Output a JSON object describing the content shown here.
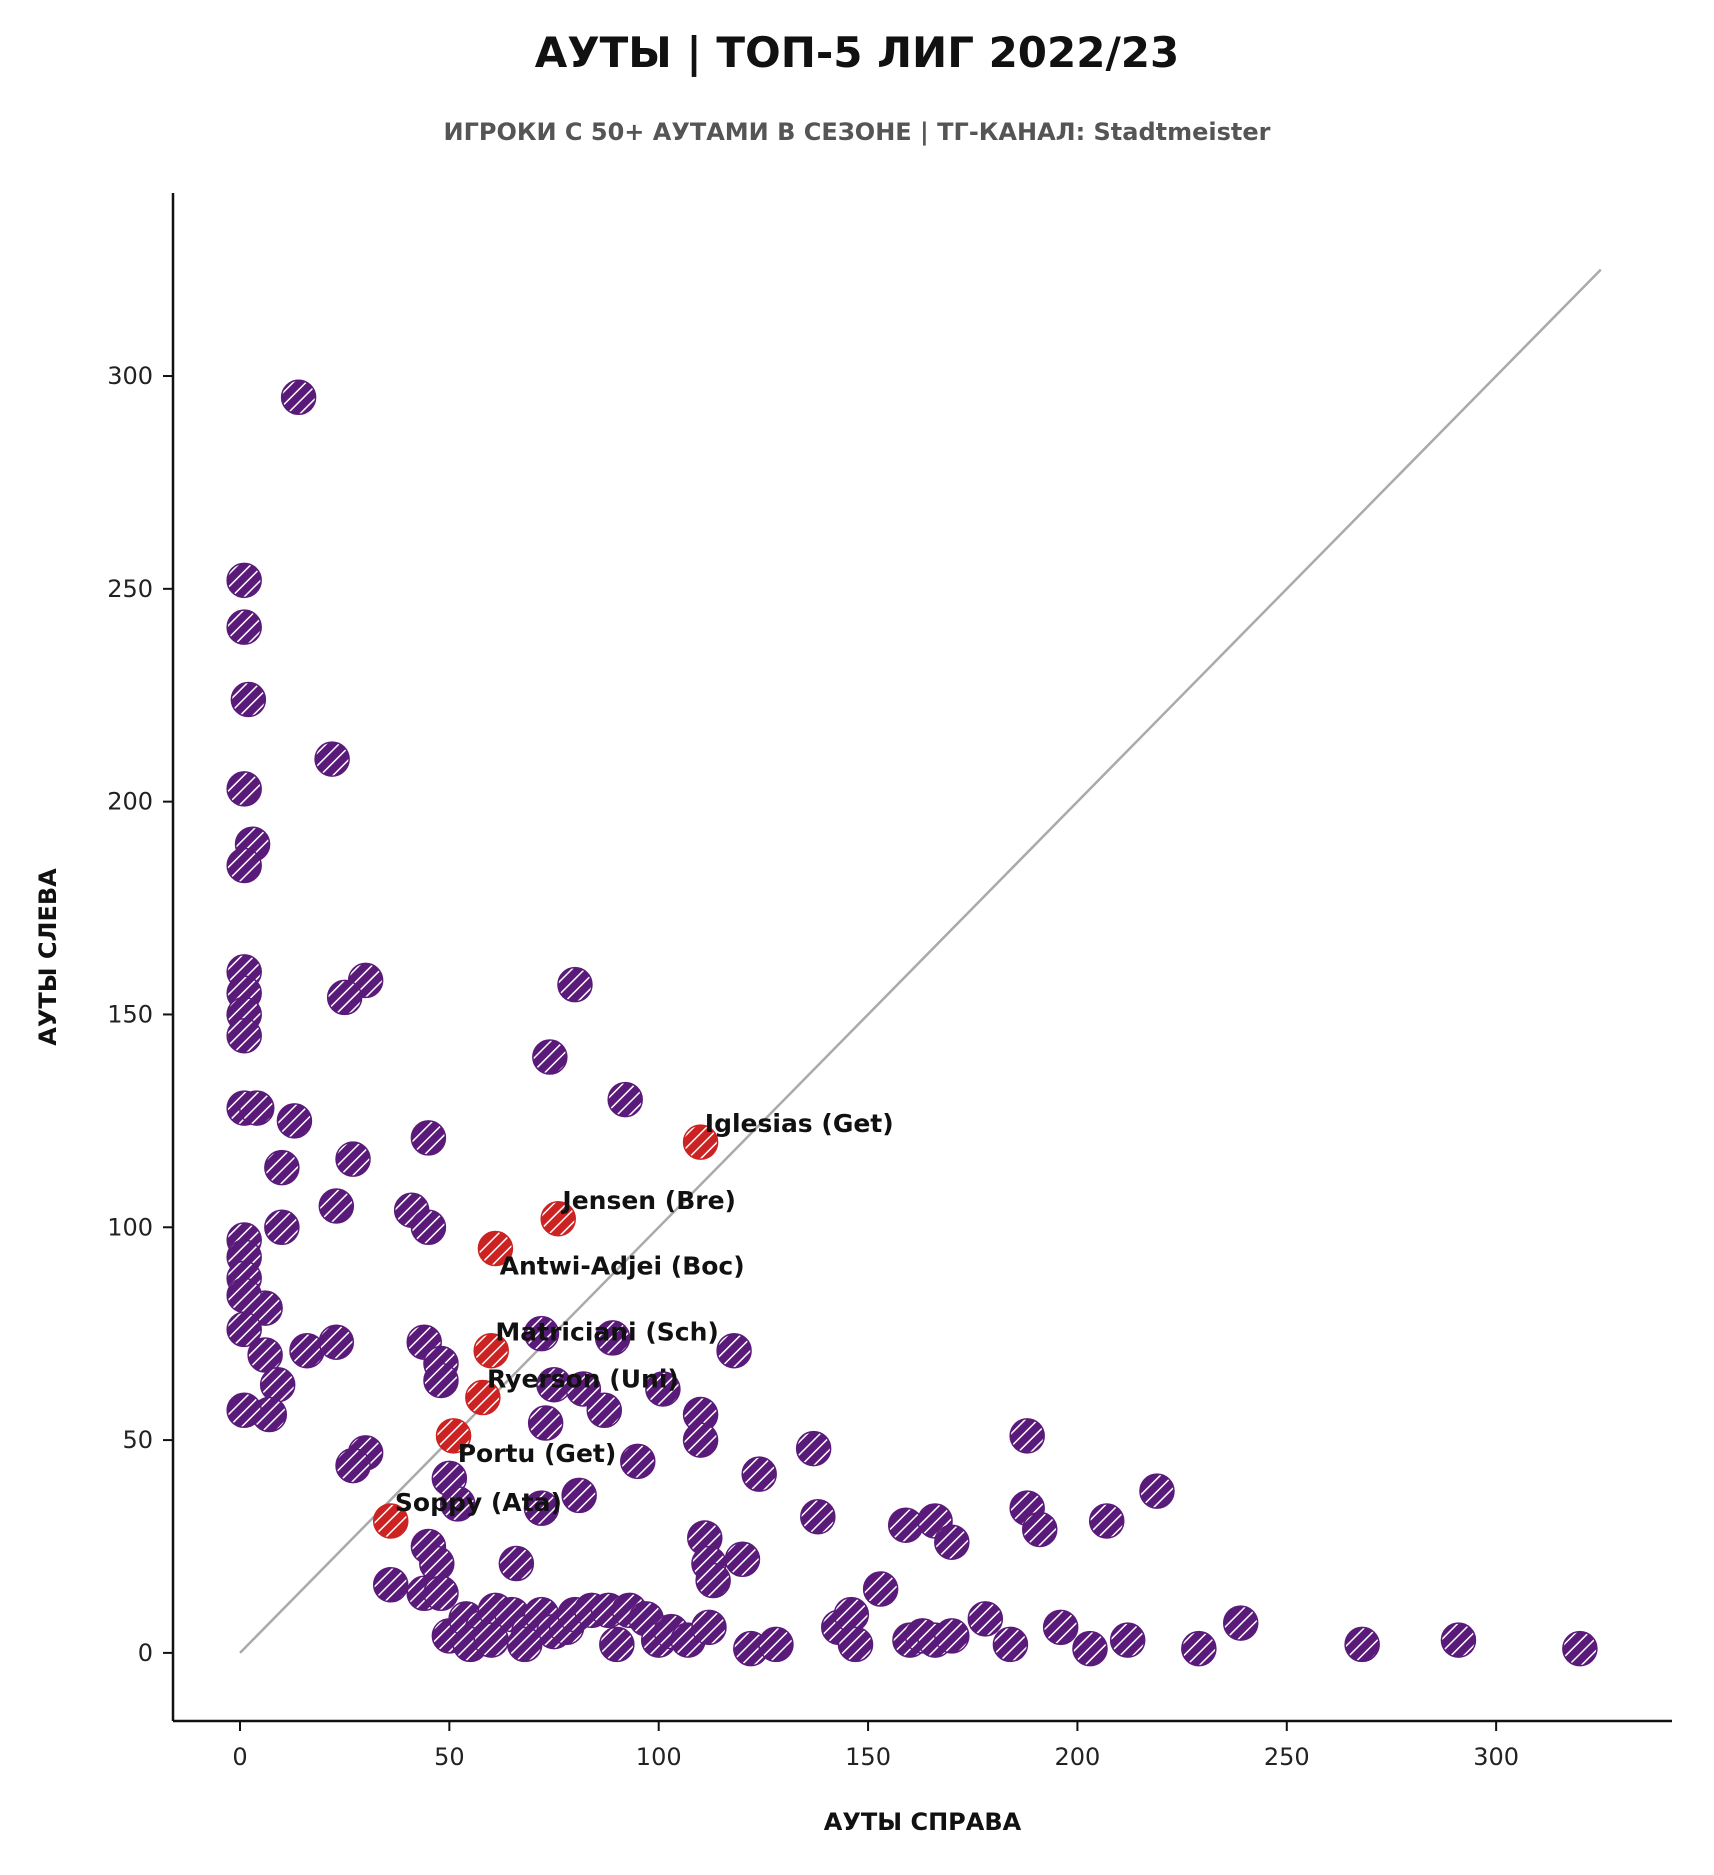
{
  "chart_data": {
    "type": "scatter",
    "title": "АУТЫ | ТОП-5 ЛИГ 2022/23",
    "subtitle": "ИГРОКИ С 50+ АУТАМИ В СЕЗОНЕ | ТГ-КАНАЛ: Stadtmeister",
    "xlabel": "АУТЫ СПРАВА",
    "ylabel": "АУТЫ СЛЕВА",
    "xlim": [
      -16,
      342
    ],
    "ylim": [
      -16,
      343
    ],
    "xticks": [
      0,
      50,
      100,
      150,
      200,
      250,
      300
    ],
    "yticks": [
      0,
      50,
      100,
      150,
      200,
      250,
      300
    ],
    "grid": false,
    "diagonal": {
      "from": [
        0,
        0
      ],
      "to": [
        325,
        325
      ],
      "color": "#aaaaaa"
    },
    "colors": {
      "default": "#5a1a7a",
      "highlight": "#cc2222",
      "hatch": "#ffffff"
    },
    "series": [
      {
        "highlight": false,
        "x": [
          14,
          1,
          1,
          2,
          22,
          1,
          3,
          1,
          1,
          1,
          1,
          1,
          30,
          25,
          80,
          74,
          92,
          1,
          4,
          13,
          10,
          27,
          23,
          45,
          41,
          45,
          10,
          1,
          1,
          6,
          1,
          1,
          16,
          23,
          6,
          9,
          1,
          7,
          1,
          44,
          48,
          48,
          72,
          89,
          75,
          82,
          87,
          118,
          101,
          110,
          110,
          73,
          81,
          95,
          124,
          137,
          188,
          30,
          27,
          50,
          72,
          52,
          45,
          47,
          66,
          111,
          112,
          120,
          113,
          138,
          159,
          166,
          170,
          188,
          191,
          207,
          219,
          36,
          44,
          48,
          50,
          54,
          58,
          61,
          65,
          69,
          72,
          75,
          78,
          80,
          84,
          88,
          93,
          97,
          100,
          103,
          107,
          112,
          122,
          128,
          143,
          146,
          147,
          153,
          160,
          163,
          166,
          170,
          178,
          184,
          196,
          203,
          212,
          229,
          239,
          268,
          291,
          320,
          55,
          60,
          68,
          90
        ],
        "y": [
          295,
          252,
          241,
          224,
          210,
          203,
          190,
          185,
          160,
          155,
          150,
          145,
          158,
          154,
          157,
          140,
          130,
          128,
          128,
          125,
          114,
          116,
          105,
          121,
          104,
          100,
          100,
          97,
          93,
          81,
          88,
          84,
          71,
          73,
          70,
          63,
          76,
          56,
          57,
          73,
          68,
          64,
          75,
          74,
          63,
          62,
          57,
          71,
          62,
          56,
          50,
          54,
          37,
          45,
          42,
          48,
          51,
          47,
          44,
          41,
          34,
          35,
          25,
          21,
          21,
          27,
          21,
          22,
          17,
          32,
          30,
          31,
          26,
          34,
          29,
          31,
          38,
          16,
          14,
          14,
          4,
          8,
          6,
          10,
          9,
          5,
          9,
          5,
          6,
          9,
          10,
          10,
          10,
          8,
          3,
          5,
          3,
          6,
          1,
          2,
          6,
          9,
          2,
          15,
          3,
          4,
          3,
          4,
          8,
          2,
          6,
          1,
          3,
          1,
          7,
          2,
          3,
          1,
          2,
          3,
          2,
          2
        ]
      },
      {
        "highlight": true,
        "x": [
          110,
          76,
          61,
          60,
          58,
          51,
          36
        ],
        "y": [
          120,
          102,
          95,
          71,
          60,
          51,
          31
        ]
      }
    ],
    "annotations": [
      {
        "text": "Iglesias (Get)",
        "x": 111,
        "y": 120,
        "anchor": "above"
      },
      {
        "text": "Jensen (Bre)",
        "x": 77,
        "y": 102,
        "anchor": "above"
      },
      {
        "text": "Antwi-Adjei (Boc)",
        "x": 62,
        "y": 95,
        "anchor": "below"
      },
      {
        "text": "Matriciani (Sch)",
        "x": 61,
        "y": 71,
        "anchor": "above"
      },
      {
        "text": "Ryerson (Uni)",
        "x": 59,
        "y": 60,
        "anchor": "above"
      },
      {
        "text": "Portu (Get)",
        "x": 52,
        "y": 51,
        "anchor": "below"
      },
      {
        "text": "Soppy (Ata)",
        "x": 37,
        "y": 31,
        "anchor": "above"
      }
    ]
  }
}
